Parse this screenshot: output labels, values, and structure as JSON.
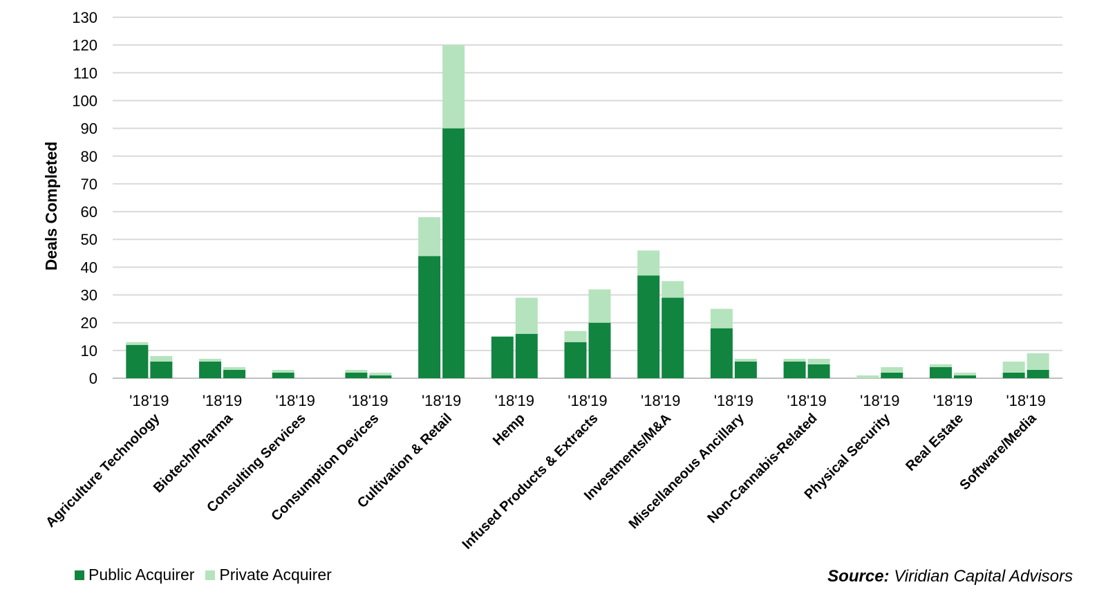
{
  "chart_data": {
    "type": "bar",
    "stacked": true,
    "ylabel": "Deals Completed",
    "ylim": [
      0,
      130
    ],
    "yticks": [
      0,
      10,
      20,
      30,
      40,
      50,
      60,
      70,
      80,
      90,
      100,
      110,
      120,
      130
    ],
    "grid": true,
    "legend_position": "bottom-left",
    "categories": [
      "Agriculture Technology",
      "Biotech/Pharma",
      "Consulting Services",
      "Consumption Devices",
      "Cultivation & Retail",
      "Hemp",
      "Infused Products & Extracts",
      "Investments/M&A",
      "Miscellaneous Ancillary",
      "Non-Cannabis-Related",
      "Physical Security",
      "Real Estate",
      "Software/Media"
    ],
    "years": [
      "'18",
      "'19"
    ],
    "series": [
      {
        "name": "Public Acquirer",
        "color": "#118440",
        "values_2018": [
          12,
          6,
          2,
          2,
          44,
          15,
          13,
          37,
          18,
          6,
          0,
          4,
          2
        ],
        "values_2019": [
          6,
          3,
          0,
          1,
          90,
          16,
          20,
          29,
          6,
          5,
          2,
          1,
          3
        ]
      },
      {
        "name": "Private Acquirer",
        "color": "#b5e3bd",
        "values_2018": [
          1,
          1,
          1,
          1,
          14,
          0,
          4,
          9,
          7,
          1,
          1,
          1,
          4
        ],
        "values_2019": [
          2,
          1,
          0,
          1,
          30,
          13,
          12,
          6,
          1,
          2,
          2,
          1,
          6
        ]
      }
    ]
  },
  "legend": {
    "public_label": "Public Acquirer",
    "private_label": "Private Acquirer"
  },
  "source": {
    "label": "Source:",
    "text": "Viridian Capital Advisors"
  }
}
